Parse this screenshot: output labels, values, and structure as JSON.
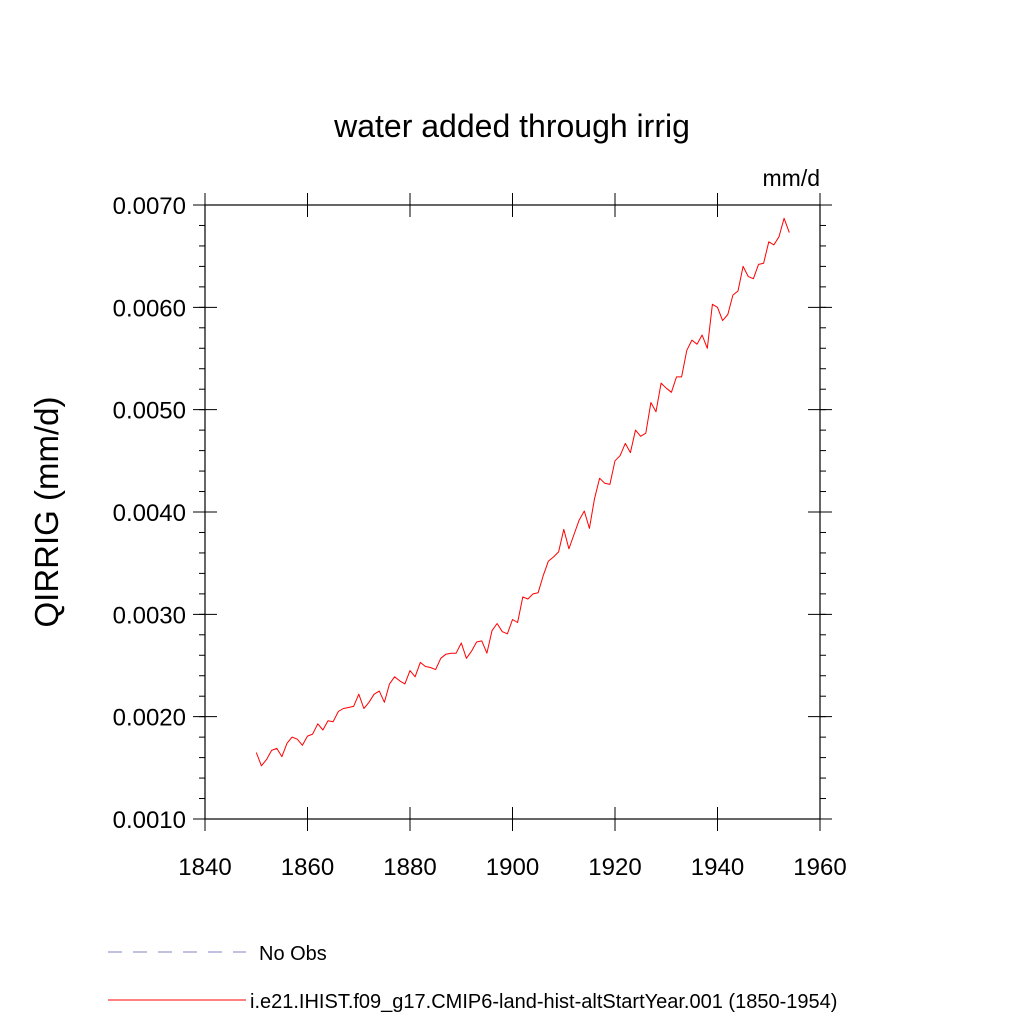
{
  "chart_data": {
    "type": "line",
    "title": "water added through irrig",
    "units": "mm/d",
    "ylabel": "QIRRIG  (mm/d)",
    "xlabel": "",
    "xlim": [
      1840,
      1960
    ],
    "ylim": [
      0.001,
      0.007
    ],
    "x_ticks": [
      1840,
      1860,
      1880,
      1900,
      1920,
      1940,
      1960
    ],
    "x_tick_labels": [
      "1840",
      "1860",
      "1880",
      "1900",
      "1920",
      "1940",
      "1960"
    ],
    "y_ticks": [
      0.001,
      0.002,
      0.003,
      0.004,
      0.005,
      0.006,
      0.007
    ],
    "y_tick_labels": [
      "0.0010",
      "0.0020",
      "0.0030",
      "0.0040",
      "0.0050",
      "0.0060",
      "0.0070"
    ],
    "grid": false,
    "legend_placement": "bottom-left",
    "legend": [
      {
        "label": "No Obs",
        "style": "dashed",
        "color": "#8080c0"
      },
      {
        "label": "i.e21.IHIST.f09_g17.CMIP6-land-hist-altStartYear.001 (1850-1954)",
        "style": "solid",
        "color": "#ff0000"
      }
    ],
    "series": [
      {
        "name": "i.e21.IHIST.f09_g17.CMIP6-land-hist-altStartYear.001 (1850-1954)",
        "color": "#ff0000",
        "x": [
          1850,
          1851,
          1852,
          1853,
          1854,
          1855,
          1856,
          1857,
          1858,
          1859,
          1860,
          1861,
          1862,
          1863,
          1864,
          1865,
          1866,
          1867,
          1868,
          1869,
          1870,
          1871,
          1872,
          1873,
          1874,
          1875,
          1876,
          1877,
          1878,
          1879,
          1880,
          1881,
          1882,
          1883,
          1884,
          1885,
          1886,
          1887,
          1888,
          1889,
          1890,
          1891,
          1892,
          1893,
          1894,
          1895,
          1896,
          1897,
          1898,
          1899,
          1900,
          1901,
          1902,
          1903,
          1904,
          1905,
          1906,
          1907,
          1908,
          1909,
          1910,
          1911,
          1912,
          1913,
          1914,
          1915,
          1916,
          1917,
          1918,
          1919,
          1920,
          1921,
          1922,
          1923,
          1924,
          1925,
          1926,
          1927,
          1928,
          1929,
          1930,
          1931,
          1932,
          1933,
          1934,
          1935,
          1936,
          1937,
          1938,
          1939,
          1940,
          1941,
          1942,
          1943,
          1944,
          1945,
          1946,
          1947,
          1948,
          1949,
          1950,
          1951,
          1952,
          1953,
          1954
        ],
        "values": [
          0.00165,
          0.00152,
          0.00158,
          0.00167,
          0.00169,
          0.00161,
          0.00174,
          0.0018,
          0.00178,
          0.00172,
          0.00181,
          0.00183,
          0.00193,
          0.00187,
          0.00196,
          0.00195,
          0.00205,
          0.00208,
          0.00209,
          0.0021,
          0.00222,
          0.00208,
          0.00214,
          0.00222,
          0.00225,
          0.00214,
          0.00232,
          0.00239,
          0.00235,
          0.00232,
          0.00245,
          0.00239,
          0.00253,
          0.00249,
          0.00248,
          0.00246,
          0.00257,
          0.00261,
          0.00262,
          0.00262,
          0.00272,
          0.00257,
          0.00264,
          0.00273,
          0.00274,
          0.00262,
          0.00284,
          0.00291,
          0.00283,
          0.00281,
          0.00295,
          0.00292,
          0.00317,
          0.00315,
          0.0032,
          0.00321,
          0.00338,
          0.00352,
          0.00356,
          0.00361,
          0.00383,
          0.00364,
          0.00378,
          0.00392,
          0.00401,
          0.00384,
          0.00413,
          0.00433,
          0.00428,
          0.00427,
          0.0045,
          0.00455,
          0.00467,
          0.00458,
          0.0048,
          0.00474,
          0.00477,
          0.00507,
          0.00498,
          0.00526,
          0.00521,
          0.00517,
          0.00532,
          0.00532,
          0.00558,
          0.00568,
          0.00564,
          0.00573,
          0.0056,
          0.00603,
          0.006,
          0.00587,
          0.00593,
          0.00612,
          0.00616,
          0.0064,
          0.0063,
          0.00628,
          0.00642,
          0.00643,
          0.00664,
          0.00661,
          0.00669,
          0.00687,
          0.00673
        ]
      }
    ]
  }
}
